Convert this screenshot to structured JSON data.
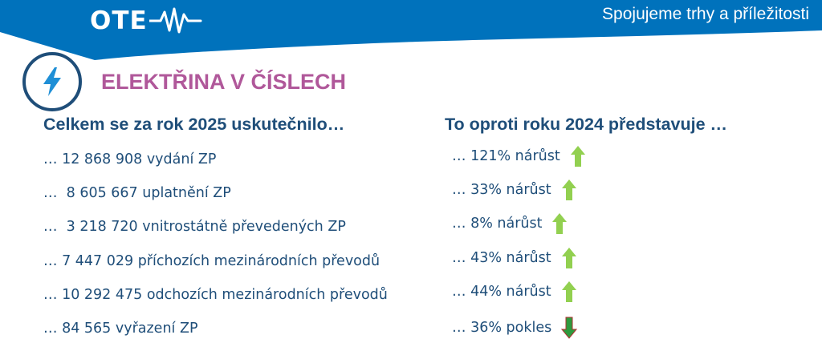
{
  "header": {
    "logo_text": "OTE",
    "tagline": "Spojujeme trhy a příležitosti",
    "band_color": "#0072bc",
    "logo_icon": "pulse-wave-icon"
  },
  "section": {
    "icon": "lightning-bolt-icon",
    "title": "ELEKTŘINA V ČÍSLECH",
    "title_color": "#b0589a"
  },
  "left_column": {
    "heading": "Celkem se za rok 2025 uskutečnilo…",
    "items": [
      "… 12 868 908 vydání ZP",
      "…  8 605 667 uplatnění ZP",
      "…  3 218 720 vnitrostátně převedených ZP",
      "… 7 447 029 příchozích mezinárodních převodů",
      "… 10 292 475 odchozích mezinárodních převodů",
      "… 84 565 vyřazení ZP"
    ]
  },
  "right_column": {
    "heading": "To oproti roku 2024 představuje …",
    "items": [
      {
        "text": "… 121% nárůst",
        "direction": "up",
        "icon": "arrow-up-icon",
        "color": "#92d050"
      },
      {
        "text": "… 33% nárůst",
        "direction": "up",
        "icon": "arrow-up-icon",
        "color": "#92d050"
      },
      {
        "text": "… 8% nárůst",
        "direction": "up",
        "icon": "arrow-up-icon",
        "color": "#92d050"
      },
      {
        "text": "… 43% nárůst",
        "direction": "up",
        "icon": "arrow-up-icon",
        "color": "#92d050"
      },
      {
        "text": "… 44% nárůst",
        "direction": "up",
        "icon": "arrow-up-icon",
        "color": "#92d050"
      },
      {
        "text": "… 36% pokles",
        "direction": "down",
        "icon": "arrow-down-icon",
        "color": "#2e9a3e"
      }
    ]
  },
  "text_color": "#1f4e79"
}
